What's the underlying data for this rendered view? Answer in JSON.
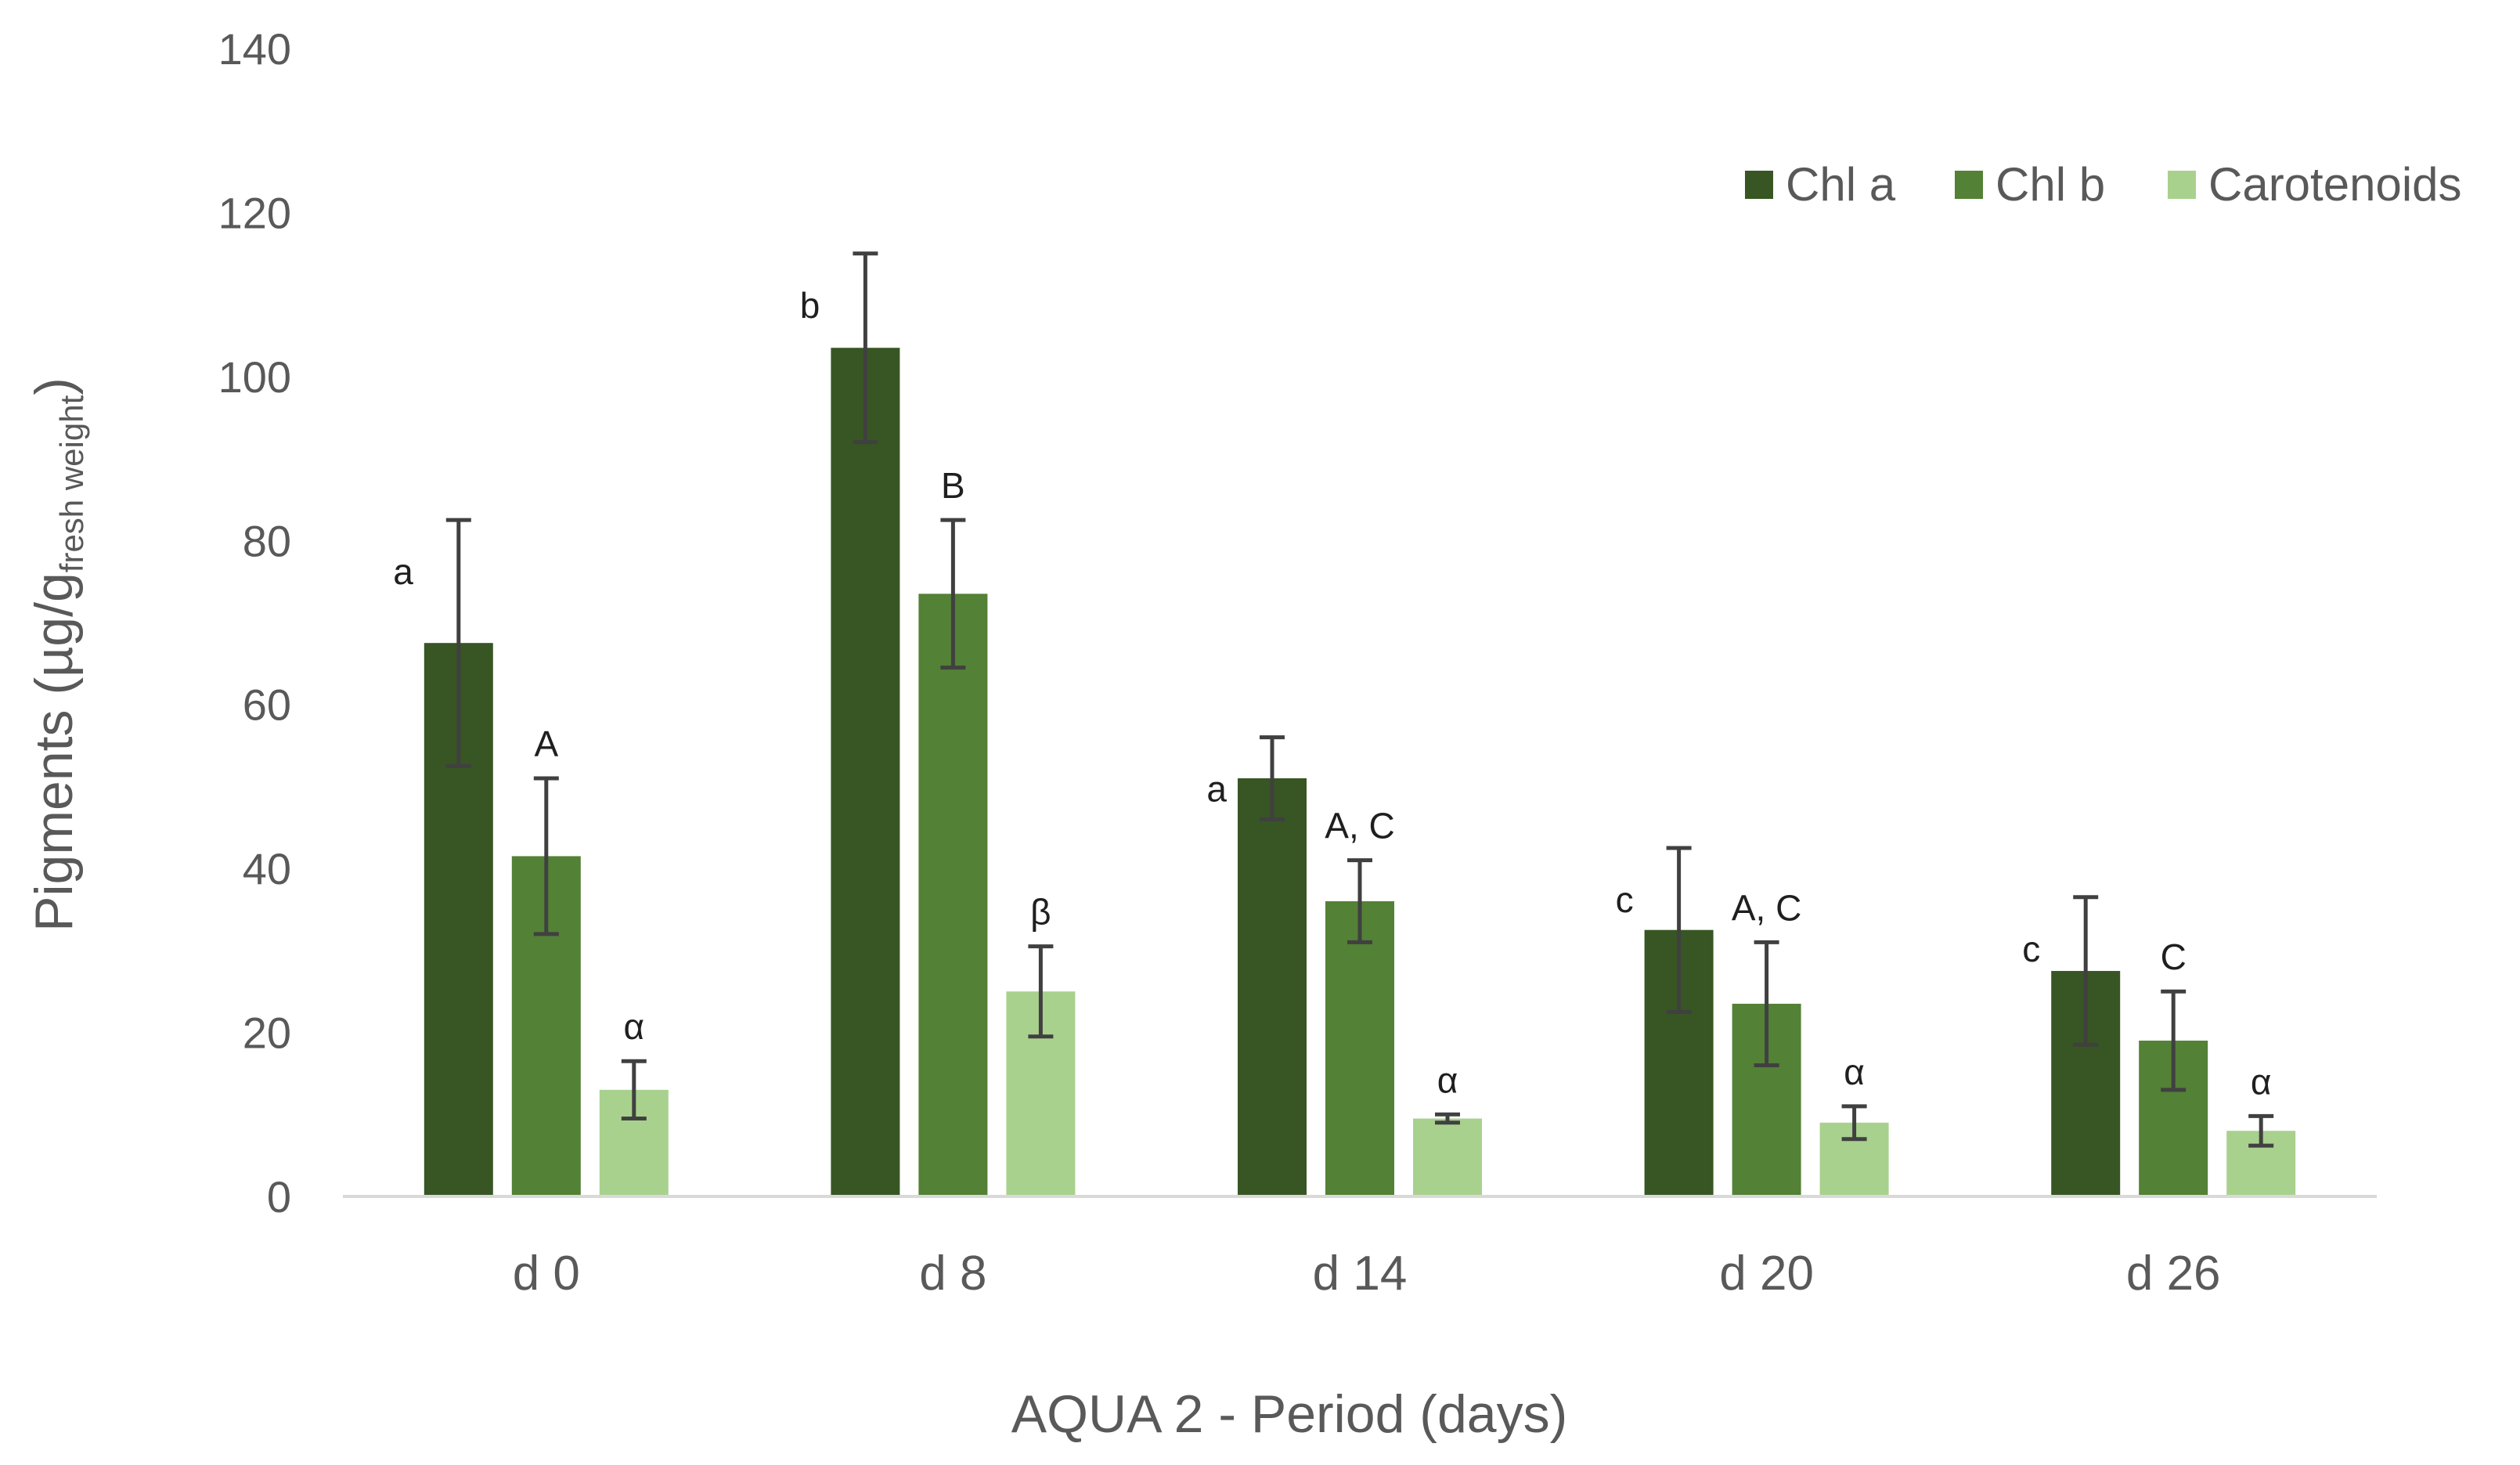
{
  "chart_data": {
    "type": "bar",
    "title": "",
    "xlabel": "AQUA 2 - Period (days)",
    "ylabel_main": "Pigments (µg/g",
    "ylabel_sub": "fresh weight",
    "ylabel_close": ")",
    "ylim": [
      0,
      140
    ],
    "yticks": [
      0,
      20,
      40,
      60,
      80,
      100,
      120,
      140
    ],
    "grid": false,
    "legend_position": "top-right",
    "categories": [
      "d 0",
      "d 8",
      "d 14",
      "d 20",
      "d 26"
    ],
    "series": [
      {
        "name": "Chl a",
        "color": "#375623",
        "values": [
          67.5,
          103.5,
          51,
          32.5,
          27.5
        ],
        "errors": [
          15,
          11.5,
          5,
          10,
          9
        ],
        "labels": [
          "a",
          "b",
          "a",
          "c",
          "c"
        ]
      },
      {
        "name": "Chl b",
        "color": "#538135",
        "values": [
          41.5,
          73.5,
          36,
          23.5,
          19
        ],
        "errors": [
          9.5,
          9,
          5,
          7.5,
          6
        ],
        "labels": [
          "A",
          "B",
          "A, C",
          "A, C",
          "C"
        ]
      },
      {
        "name": "Carotenoids",
        "color": "#a9d18e",
        "values": [
          13,
          25,
          9.5,
          9,
          8
        ],
        "errors": [
          3.5,
          5.5,
          0.5,
          2,
          1.8
        ],
        "labels": [
          "α",
          "β",
          "α",
          "α",
          "α"
        ]
      }
    ]
  }
}
